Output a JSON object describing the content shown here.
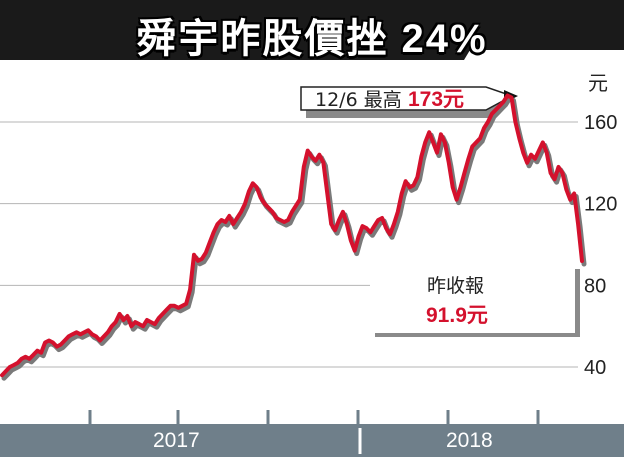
{
  "colors": {
    "line": "#d4112d",
    "title_bg": "#1a1a1a",
    "axis_band": "#6f7f8a",
    "grid": "#b5b5b5",
    "callout_text_red": "#d4112d"
  },
  "chart_data": {
    "type": "line",
    "title": "舜宇昨股價挫 24%",
    "unit_label": "元",
    "xlabel": "",
    "ylabel": "",
    "x_ticks": [
      "2017",
      "2018"
    ],
    "y_ticks": [
      40,
      80,
      120,
      160
    ],
    "ylim": [
      20,
      180
    ],
    "grid": "horizontal",
    "series": [
      {
        "values": [
          36,
          38,
          40,
          41,
          42,
          44,
          45,
          44,
          46,
          48,
          47,
          52,
          53,
          52,
          50,
          51,
          53,
          55,
          56,
          57,
          56,
          57,
          58,
          56,
          55,
          53,
          55,
          57,
          60,
          62,
          66,
          63,
          65,
          60,
          62,
          61,
          60,
          63,
          62,
          61,
          64,
          66,
          68,
          70,
          70,
          69,
          70,
          71,
          78,
          95,
          92,
          93,
          96,
          101,
          106,
          110,
          112,
          111,
          114,
          110,
          113,
          116,
          120,
          126,
          130,
          128,
          123,
          120,
          118,
          116,
          113,
          112,
          111,
          112,
          116,
          119,
          122,
          138,
          146,
          143,
          141,
          144,
          140,
          125,
          110,
          107,
          112,
          116,
          110,
          102,
          97,
          104,
          109,
          108,
          106,
          109,
          112,
          113,
          108,
          105,
          110,
          116,
          125,
          131,
          128,
          129,
          133,
          143,
          150,
          155,
          150,
          145,
          154,
          150,
          140,
          128,
          122,
          128,
          135,
          142,
          148,
          150,
          152,
          157,
          160,
          164,
          166,
          168,
          170,
          173,
          172,
          160,
          152,
          145,
          140,
          144,
          142,
          146,
          150,
          145,
          135,
          132,
          138,
          135,
          127,
          122,
          125,
          110,
          91.9
        ]
      }
    ],
    "annotations": [
      {
        "label": "12/6 最高",
        "value_text": "173元",
        "value": 173
      },
      {
        "label": "昨收報",
        "value_text": "91.9元",
        "value": 91.9
      }
    ]
  }
}
